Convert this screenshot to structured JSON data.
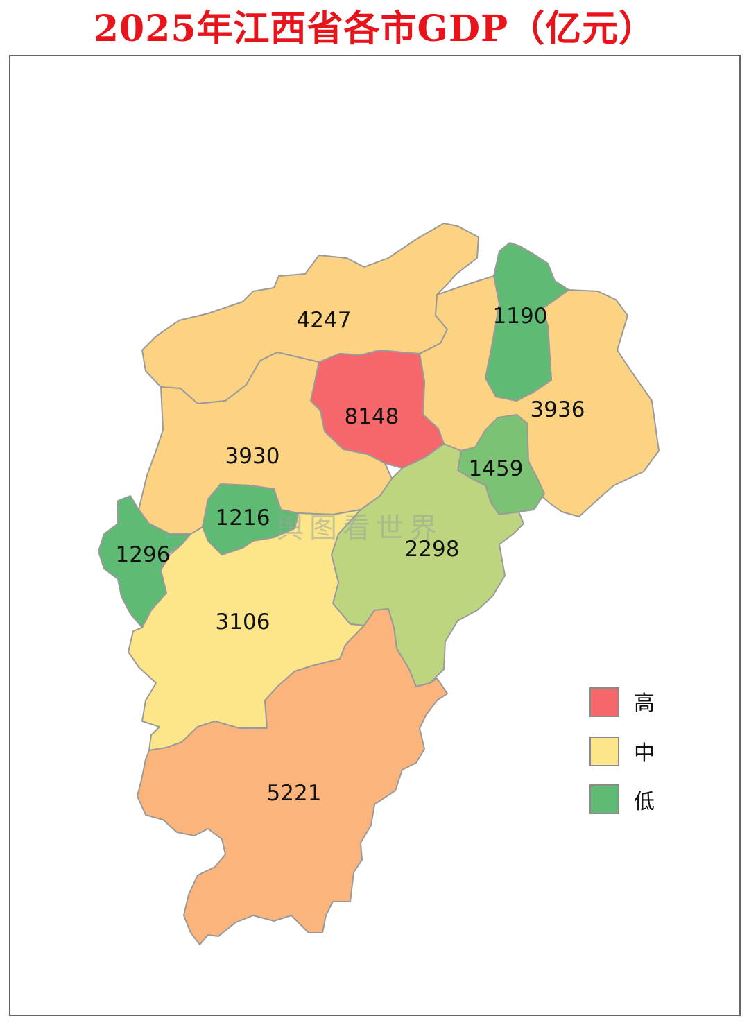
{
  "title": "2025年江西省各市GDP（亿元）",
  "watermark": "舆图看世界",
  "colors": {
    "high": "#f5676b",
    "mid": "#fde68a",
    "low": "#5fba73",
    "mid_orange": "#fcd283",
    "deep_orange": "#fbb57c",
    "light_green": "#bdd57e",
    "mid_green": "#7cc274"
  },
  "legend": [
    {
      "label": "高",
      "color": "#f5676b"
    },
    {
      "label": "中",
      "color": "#fde68a"
    },
    {
      "label": "低",
      "color": "#5fba73"
    }
  ],
  "regions": [
    {
      "id": "jiujiang",
      "value": "4247"
    },
    {
      "id": "nanchang",
      "value": "8148"
    },
    {
      "id": "yichun",
      "value": "3930"
    },
    {
      "id": "jingdezhen",
      "value": "1190"
    },
    {
      "id": "shangrao",
      "value": "3936"
    },
    {
      "id": "yingtan",
      "value": "1459"
    },
    {
      "id": "xinyu",
      "value": "1216"
    },
    {
      "id": "pingxiang",
      "value": "1296"
    },
    {
      "id": "fuzhou",
      "value": "2298"
    },
    {
      "id": "jian",
      "value": "3106"
    },
    {
      "id": "ganzhou",
      "value": "5221"
    }
  ]
}
